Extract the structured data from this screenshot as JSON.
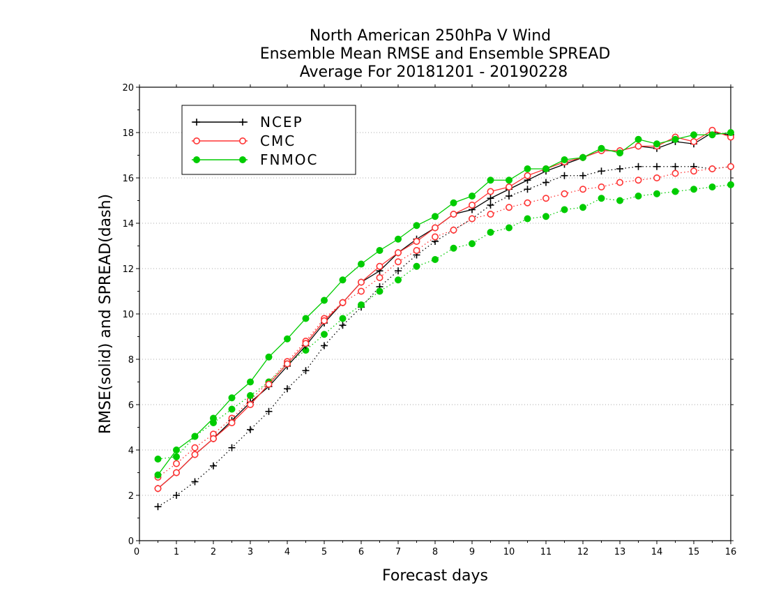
{
  "chart_data": {
    "type": "line",
    "title": [
      "North American 250hPa V Wind",
      "Ensemble Mean RMSE and Ensemble SPREAD",
      "Average For 20181201 - 20190228"
    ],
    "xlabel": "Forecast days",
    "ylabel": "RMSE(solid) and SPREAD(dash)",
    "xlim": [
      0,
      16
    ],
    "ylim": [
      0,
      20
    ],
    "xticks": [
      0,
      1,
      2,
      3,
      4,
      5,
      6,
      7,
      8,
      9,
      10,
      11,
      12,
      13,
      14,
      15,
      16
    ],
    "yticks": [
      0,
      2,
      4,
      6,
      8,
      10,
      12,
      14,
      16,
      18,
      20
    ],
    "grid": "horizontal dotted",
    "legend_position": "top-left",
    "x": [
      0.5,
      1,
      1.5,
      2,
      2.5,
      3,
      3.5,
      4,
      4.5,
      5,
      5.5,
      6,
      6.5,
      7,
      7.5,
      8,
      8.5,
      9,
      9.5,
      10,
      10.5,
      11,
      11.5,
      12,
      12.5,
      13,
      13.5,
      14,
      14.5,
      15,
      15.5,
      16
    ],
    "series": [
      {
        "name": "NCEP",
        "color": "#000000",
        "marker": "plus",
        "rmse": [
          2.3,
          3.0,
          3.8,
          4.5,
          5.3,
          6.1,
          6.8,
          7.7,
          8.6,
          9.6,
          10.5,
          11.4,
          11.9,
          12.7,
          13.3,
          13.8,
          14.4,
          14.6,
          15.1,
          15.5,
          15.9,
          16.3,
          16.6,
          16.9,
          17.2,
          17.2,
          17.4,
          17.3,
          17.6,
          17.5,
          18.0,
          17.9
        ],
        "spread": [
          1.5,
          2.0,
          2.6,
          3.3,
          4.1,
          4.9,
          5.7,
          6.7,
          7.5,
          8.6,
          9.5,
          10.3,
          11.2,
          11.9,
          12.6,
          13.2,
          13.7,
          14.2,
          14.8,
          15.2,
          15.5,
          15.8,
          16.1,
          16.1,
          16.3,
          16.4,
          16.5,
          16.5,
          16.5,
          16.5,
          16.4,
          16.5
        ]
      },
      {
        "name": "CMC",
        "color": "#ff3333",
        "marker": "open-circle",
        "rmse": [
          2.3,
          3.0,
          3.8,
          4.5,
          5.2,
          6.0,
          6.9,
          7.8,
          8.7,
          9.7,
          10.5,
          11.4,
          12.1,
          12.7,
          13.2,
          13.8,
          14.4,
          14.8,
          15.4,
          15.6,
          16.1,
          16.4,
          16.7,
          16.9,
          17.2,
          17.2,
          17.4,
          17.4,
          17.8,
          17.6,
          18.1,
          17.8
        ],
        "spread": [
          2.8,
          3.4,
          4.1,
          4.7,
          5.4,
          6.2,
          7.0,
          7.9,
          8.8,
          9.8,
          10.5,
          11.0,
          11.6,
          12.3,
          12.8,
          13.4,
          13.7,
          14.2,
          14.4,
          14.7,
          14.9,
          15.1,
          15.3,
          15.5,
          15.6,
          15.8,
          15.9,
          16.0,
          16.2,
          16.3,
          16.4,
          16.5
        ]
      },
      {
        "name": "FNMOC",
        "color": "#00cc00",
        "marker": "filled-circle",
        "rmse": [
          2.9,
          4.0,
          4.6,
          5.4,
          6.3,
          7.0,
          8.1,
          8.9,
          9.8,
          10.6,
          11.5,
          12.2,
          12.8,
          13.3,
          13.9,
          14.3,
          14.9,
          15.2,
          15.9,
          15.9,
          16.4,
          16.4,
          16.8,
          16.9,
          17.3,
          17.1,
          17.7,
          17.5,
          17.7,
          17.9,
          17.9,
          18.0
        ],
        "spread": [
          3.6,
          3.7,
          4.6,
          5.2,
          5.8,
          6.4,
          7.0,
          7.8,
          8.4,
          9.1,
          9.8,
          10.4,
          11.0,
          11.5,
          12.1,
          12.4,
          12.9,
          13.1,
          13.6,
          13.8,
          14.2,
          14.3,
          14.6,
          14.7,
          15.1,
          15.0,
          15.2,
          15.3,
          15.4,
          15.5,
          15.6,
          15.7
        ]
      }
    ]
  }
}
